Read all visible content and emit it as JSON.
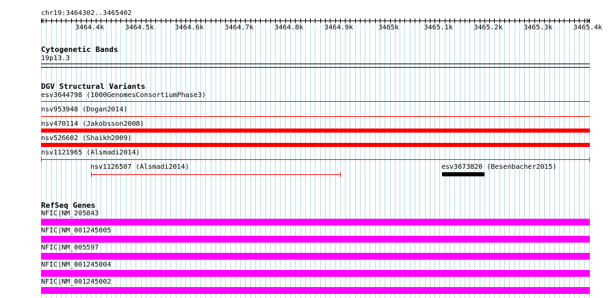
{
  "ruler": {
    "coords": "chr19:3464302..3465402",
    "ticks": [
      "3464.4k",
      "3464.5k",
      "3464.6k",
      "3464.7k",
      "3464.8k",
      "3464.9k",
      "3465k",
      "3465.1k",
      "3465.2k",
      "3465.3k",
      "3465.4k"
    ]
  },
  "cytobands": {
    "title": "Cytogenetic Bands",
    "band": "19p13.3"
  },
  "dgv": {
    "title": "DGV Structural Variants",
    "items": [
      "esv3644798 (1000GenomesConsortiumPhase3)",
      "nsv953948 (Dogan2014)",
      "nsv470114 (Jakobsson2008)",
      "nsv526602 (Shaikh2009)",
      "nsv1121965 (Alsmadi2014)",
      "nsv1126507 (Alsmadi2014)",
      "esv3673820 (Besenbacher2015)"
    ]
  },
  "refseq": {
    "title": "RefSeq Genes",
    "items": [
      "NFIC|NM_205843",
      "NFIC|NM_001245005",
      "NFIC|NM_005597",
      "NFIC|NM_001245004",
      "NFIC|NM_001245002"
    ]
  },
  "colors": {
    "grid": "#b8dce8",
    "cnv_red": "#ff0000",
    "cnv_black": "#000000",
    "gene": "#ff00ff"
  }
}
